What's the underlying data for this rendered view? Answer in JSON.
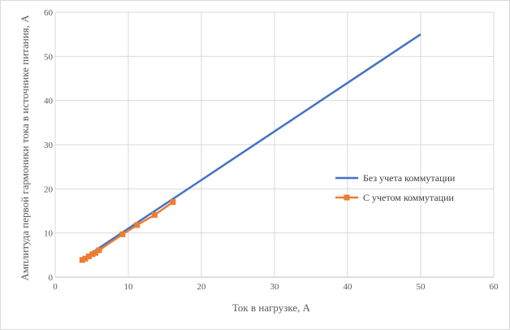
{
  "chart_data": {
    "type": "line",
    "title": "",
    "xlabel": "Ток в нагрузке, А",
    "ylabel": "Амплитуда первой гармоники тока в источнике питания, А",
    "xlim": [
      0,
      60
    ],
    "ylim": [
      0,
      60
    ],
    "x_ticks": [
      0,
      10,
      20,
      30,
      40,
      50,
      60
    ],
    "y_ticks": [
      0,
      10,
      20,
      30,
      40,
      50,
      60
    ],
    "grid": true,
    "legend_position": "right",
    "series": [
      {
        "name": "Без учета коммутации",
        "color": "#4472c4",
        "marker": "none",
        "x": [
          3.8,
          5,
          10,
          15,
          20,
          25,
          30,
          35,
          40,
          45,
          50
        ],
        "y": [
          4.1,
          5.5,
          11.0,
          16.5,
          22.0,
          27.5,
          33.0,
          38.5,
          44.0,
          49.5,
          55.0
        ]
      },
      {
        "name": "С учетом коммутации",
        "color": "#ed7d31",
        "marker": "square",
        "x": [
          3.7,
          4.1,
          4.6,
          5.1,
          5.5,
          6.0,
          9.2,
          11.2,
          13.6,
          16.1
        ],
        "y": [
          3.9,
          4.2,
          4.7,
          5.2,
          5.5,
          6.1,
          9.7,
          11.8,
          14.1,
          17.0
        ]
      }
    ]
  }
}
